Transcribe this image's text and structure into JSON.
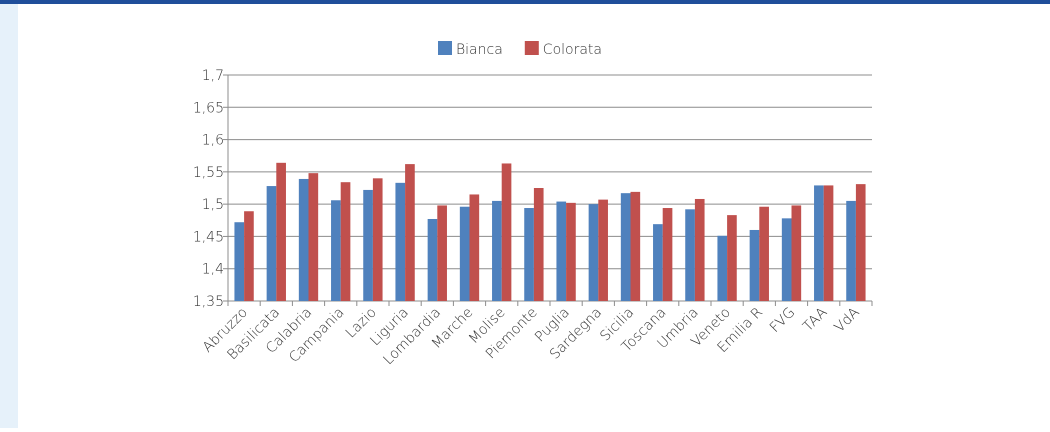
{
  "chart_data": {
    "type": "bar",
    "categories": [
      "Abruzzo",
      "Basilicata",
      "Calabria",
      "Campania",
      "Lazio",
      "Liguria",
      "Lombardia",
      "Marche",
      "Molise",
      "Piemonte",
      "Puglia",
      "Sardegna",
      "Sicilia",
      "Toscana",
      "Umbria",
      "Veneto",
      "Emilia R",
      "FVG",
      "TAA",
      "VdA"
    ],
    "series": [
      {
        "name": "Bianca",
        "color": "#4f81bd",
        "values": [
          1.472,
          1.528,
          1.539,
          1.506,
          1.522,
          1.533,
          1.477,
          1.496,
          1.505,
          1.494,
          1.504,
          1.5,
          1.517,
          1.469,
          1.492,
          1.451,
          1.46,
          1.478,
          1.529,
          1.505
        ]
      },
      {
        "name": "Colorata",
        "color": "#c0504d",
        "values": [
          1.489,
          1.564,
          1.548,
          1.534,
          1.54,
          1.562,
          1.498,
          1.515,
          1.563,
          1.525,
          1.502,
          1.507,
          1.519,
          1.494,
          1.508,
          1.483,
          1.496,
          1.498,
          1.529,
          1.531
        ]
      }
    ],
    "ylim": [
      1.35,
      1.7
    ],
    "yticks": [
      {
        "value": 1.35,
        "label": "1,35"
      },
      {
        "value": 1.4,
        "label": "1,4"
      },
      {
        "value": 1.45,
        "label": "1,45"
      },
      {
        "value": 1.5,
        "label": "1,5"
      },
      {
        "value": 1.55,
        "label": "1,55"
      },
      {
        "value": 1.6,
        "label": "1,6"
      },
      {
        "value": 1.65,
        "label": "1,65"
      },
      {
        "value": 1.7,
        "label": "1,7"
      }
    ],
    "grid": true,
    "legend": "top"
  }
}
